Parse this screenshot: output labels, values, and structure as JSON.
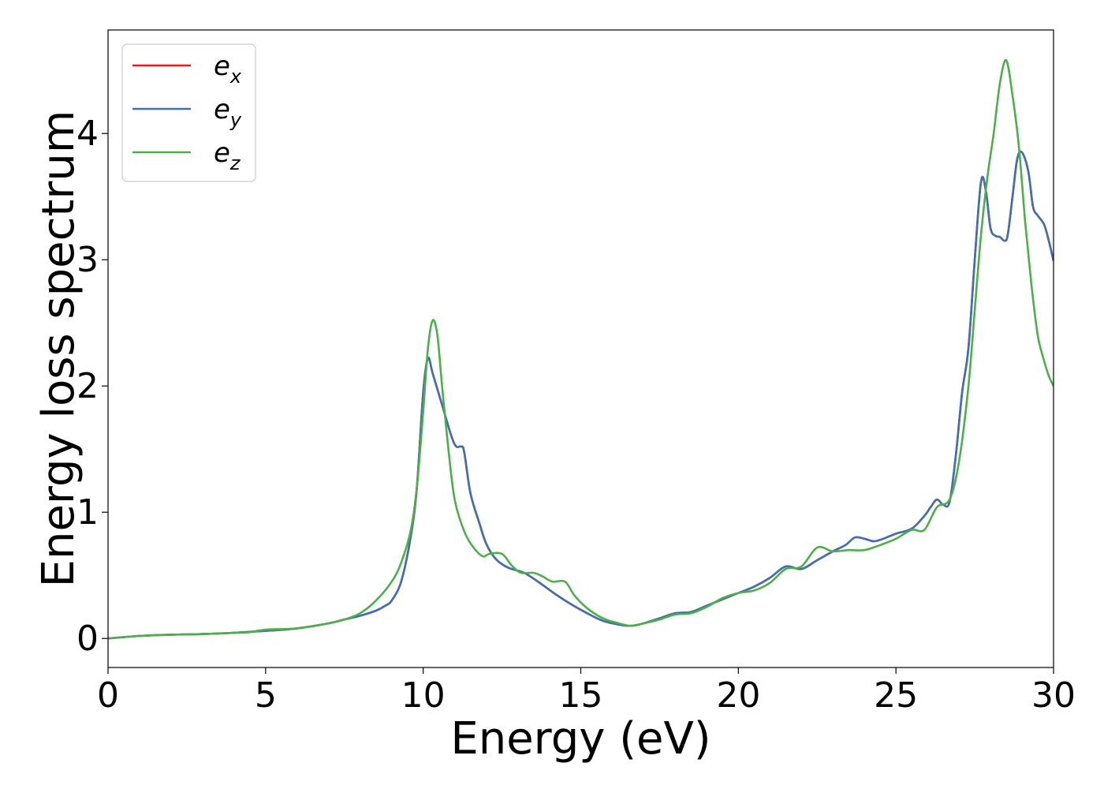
{
  "chart_data": {
    "type": "line",
    "title": "",
    "xlabel": "Energy (eV)",
    "ylabel": "Energy loss spectrum",
    "xlim": [
      0,
      30
    ],
    "ylim": [
      -0.23,
      4.82
    ],
    "xticks": [
      0,
      5,
      10,
      15,
      20,
      25,
      30
    ],
    "xtick_labels": [
      "0",
      "5",
      "10",
      "15",
      "20",
      "25",
      "30"
    ],
    "yticks": [
      0,
      1,
      2,
      3,
      4
    ],
    "ytick_labels": [
      "0",
      "1",
      "2",
      "3",
      "4"
    ],
    "grid": false,
    "legend_position": "top-left",
    "series": [
      {
        "name": "e_x",
        "legend_base": "e",
        "legend_sub": "x",
        "color": "#e41a1c",
        "x": [
          0,
          1,
          2,
          3,
          4,
          5,
          6,
          7,
          7.5,
          8,
          8.5,
          8.8,
          9,
          9.3,
          9.6,
          9.8,
          10,
          10.15,
          10.3,
          10.6,
          10.9,
          11.05,
          11.2,
          11.3,
          11.5,
          11.8,
          12,
          12.3,
          12.7,
          13.2,
          13.7,
          14.2,
          14.7,
          15.2,
          15.7,
          16.2,
          16.6,
          17,
          17.5,
          18,
          18.5,
          19,
          19.5,
          20,
          20.5,
          21,
          21.5,
          22,
          22.5,
          23,
          23.4,
          23.7,
          24,
          24.3,
          24.6,
          25,
          25.5,
          25.9,
          26.1,
          26.3,
          26.5,
          26.7,
          26.9,
          27.1,
          27.3,
          27.5,
          27.7,
          27.85,
          28,
          28.15,
          28.3,
          28.45,
          28.55,
          28.7,
          28.85,
          29,
          29.2,
          29.35,
          29.5,
          29.7,
          29.85,
          30
        ],
        "values": [
          0.0,
          0.02,
          0.03,
          0.035,
          0.045,
          0.06,
          0.08,
          0.12,
          0.15,
          0.18,
          0.22,
          0.26,
          0.3,
          0.45,
          0.8,
          1.2,
          1.95,
          2.22,
          2.1,
          1.85,
          1.6,
          1.52,
          1.52,
          1.48,
          1.15,
          0.9,
          0.75,
          0.63,
          0.56,
          0.52,
          0.44,
          0.35,
          0.27,
          0.2,
          0.14,
          0.11,
          0.1,
          0.12,
          0.16,
          0.2,
          0.21,
          0.26,
          0.31,
          0.36,
          0.41,
          0.48,
          0.57,
          0.55,
          0.62,
          0.69,
          0.74,
          0.8,
          0.79,
          0.77,
          0.79,
          0.83,
          0.87,
          0.97,
          1.04,
          1.1,
          1.06,
          1.08,
          1.45,
          1.95,
          2.3,
          3.0,
          3.62,
          3.55,
          3.25,
          3.19,
          3.18,
          3.15,
          3.2,
          3.5,
          3.8,
          3.85,
          3.7,
          3.42,
          3.35,
          3.28,
          3.15,
          2.99
        ]
      },
      {
        "name": "e_y",
        "legend_base": "e",
        "legend_sub": "y",
        "color": "#3d71b1",
        "x": [
          0,
          1,
          2,
          3,
          4,
          5,
          6,
          7,
          7.5,
          8,
          8.5,
          8.8,
          9,
          9.3,
          9.6,
          9.8,
          10,
          10.15,
          10.3,
          10.6,
          10.9,
          11.05,
          11.2,
          11.3,
          11.5,
          11.8,
          12,
          12.3,
          12.7,
          13.2,
          13.7,
          14.2,
          14.7,
          15.2,
          15.7,
          16.2,
          16.6,
          17,
          17.5,
          18,
          18.5,
          19,
          19.5,
          20,
          20.5,
          21,
          21.5,
          22,
          22.5,
          23,
          23.4,
          23.7,
          24,
          24.3,
          24.6,
          25,
          25.5,
          25.9,
          26.1,
          26.3,
          26.5,
          26.7,
          26.9,
          27.1,
          27.3,
          27.5,
          27.7,
          27.85,
          28,
          28.15,
          28.3,
          28.45,
          28.55,
          28.7,
          28.85,
          29,
          29.2,
          29.35,
          29.5,
          29.7,
          29.85,
          30
        ],
        "values": [
          0.0,
          0.02,
          0.03,
          0.035,
          0.045,
          0.06,
          0.08,
          0.12,
          0.15,
          0.18,
          0.22,
          0.26,
          0.3,
          0.45,
          0.8,
          1.2,
          1.95,
          2.22,
          2.1,
          1.85,
          1.6,
          1.52,
          1.52,
          1.48,
          1.15,
          0.9,
          0.75,
          0.63,
          0.56,
          0.52,
          0.44,
          0.35,
          0.27,
          0.2,
          0.14,
          0.11,
          0.1,
          0.12,
          0.16,
          0.2,
          0.21,
          0.26,
          0.31,
          0.36,
          0.41,
          0.48,
          0.57,
          0.55,
          0.62,
          0.69,
          0.74,
          0.8,
          0.79,
          0.77,
          0.79,
          0.83,
          0.87,
          0.97,
          1.04,
          1.1,
          1.06,
          1.08,
          1.45,
          1.95,
          2.3,
          3.0,
          3.62,
          3.55,
          3.25,
          3.19,
          3.18,
          3.15,
          3.2,
          3.5,
          3.8,
          3.85,
          3.7,
          3.42,
          3.35,
          3.28,
          3.15,
          2.99
        ]
      },
      {
        "name": "e_z",
        "legend_base": "e",
        "legend_sub": "z",
        "color": "#4daf4a",
        "x": [
          0,
          1,
          2,
          3,
          4,
          4.5,
          5,
          6,
          7,
          7.5,
          8,
          8.5,
          9,
          9.3,
          9.6,
          9.8,
          10,
          10.15,
          10.3,
          10.45,
          10.6,
          10.8,
          11,
          11.3,
          11.6,
          11.9,
          12.1,
          12.5,
          12.8,
          13.1,
          13.5,
          13.8,
          14.1,
          14.5,
          14.8,
          15.2,
          15.7,
          16.2,
          16.6,
          17,
          17.5,
          18,
          18.5,
          19,
          19.5,
          20,
          20.5,
          21,
          21.5,
          22,
          22.5,
          23,
          23.5,
          24,
          24.5,
          25,
          25.5,
          25.9,
          26.3,
          26.7,
          27,
          27.3,
          27.5,
          27.7,
          27.9,
          28.1,
          28.3,
          28.5,
          28.7,
          28.9,
          29.1,
          29.3,
          29.5,
          29.7,
          29.85,
          30
        ],
        "values": [
          0.0,
          0.02,
          0.03,
          0.035,
          0.045,
          0.05,
          0.07,
          0.08,
          0.12,
          0.15,
          0.2,
          0.3,
          0.45,
          0.6,
          0.85,
          1.2,
          1.8,
          2.3,
          2.52,
          2.4,
          2.0,
          1.5,
          1.1,
          0.85,
          0.72,
          0.65,
          0.67,
          0.67,
          0.58,
          0.52,
          0.52,
          0.49,
          0.45,
          0.45,
          0.34,
          0.24,
          0.16,
          0.12,
          0.1,
          0.12,
          0.15,
          0.19,
          0.2,
          0.25,
          0.32,
          0.36,
          0.38,
          0.44,
          0.55,
          0.57,
          0.72,
          0.69,
          0.7,
          0.7,
          0.74,
          0.79,
          0.86,
          0.86,
          1.04,
          1.1,
          1.4,
          2.0,
          2.6,
          3.2,
          3.65,
          4.0,
          4.4,
          4.58,
          4.3,
          3.9,
          3.3,
          2.8,
          2.4,
          2.2,
          2.08,
          2.0
        ]
      }
    ]
  }
}
